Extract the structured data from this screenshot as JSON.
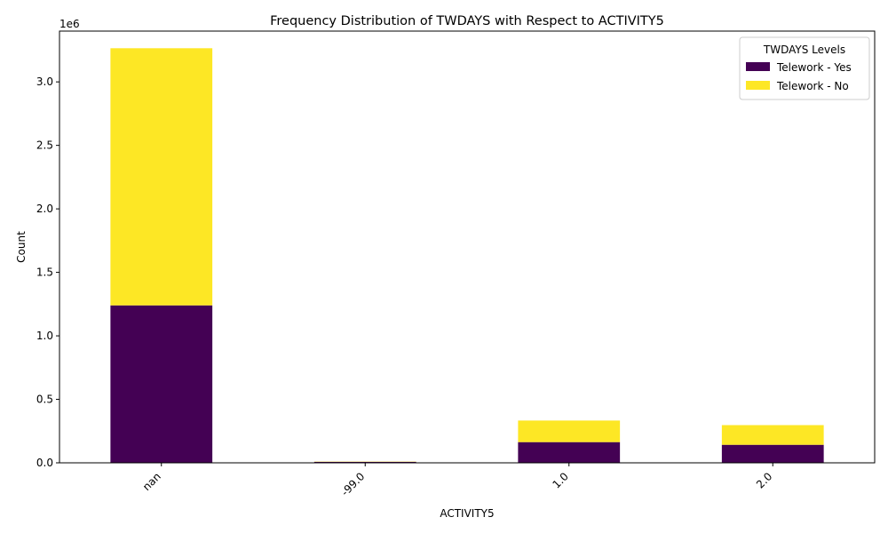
{
  "chart_data": {
    "type": "bar",
    "stacked": true,
    "title": "Frequency Distribution of TWDAYS with Respect to ACTIVITY5",
    "xlabel": "ACTIVITY5",
    "ylabel": "Count",
    "y_offset_label": "1e6",
    "categories": [
      "nan",
      "-99.0",
      "1.0",
      "2.0"
    ],
    "series": [
      {
        "name": "Telework - Yes",
        "color": "#440154",
        "values": [
          1240000,
          8000,
          163000,
          142000
        ]
      },
      {
        "name": "Telework - No",
        "color": "#fde725",
        "values": [
          2025000,
          2000,
          170000,
          155000
        ]
      }
    ],
    "ylim": [
      0,
      3400000
    ],
    "yticks": [
      0,
      500000,
      1000000,
      1500000,
      2000000,
      2500000,
      3000000
    ],
    "ytick_labels": [
      "0.0",
      "0.5",
      "1.0",
      "1.5",
      "2.0",
      "2.5",
      "3.0"
    ],
    "legend": {
      "title": "TWDAYS Levels",
      "placement": "top-right"
    },
    "grid": false
  }
}
